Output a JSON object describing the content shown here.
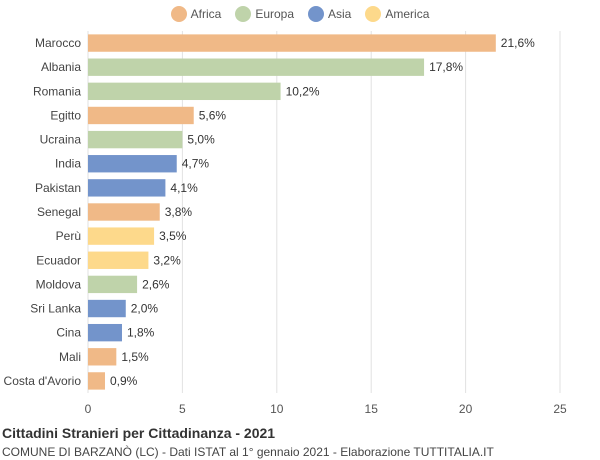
{
  "chart_data": {
    "type": "bar",
    "orientation": "horizontal",
    "title": "Cittadini Stranieri per Cittadinanza - 2021",
    "subtitle": "COMUNE DI BARZANÒ (LC) - Dati ISTAT al 1° gennaio 2021 - Elaborazione TUTTITALIA.IT",
    "xlim": [
      0,
      25
    ],
    "xticks": [
      0,
      5,
      10,
      15,
      20,
      25
    ],
    "grid": true,
    "legend_position": "top",
    "legend": [
      {
        "name": "Africa",
        "color": "#f0b987"
      },
      {
        "name": "Europa",
        "color": "#bfd3aa"
      },
      {
        "name": "Asia",
        "color": "#7394cb"
      },
      {
        "name": "America",
        "color": "#fdd98b"
      }
    ],
    "categories": [
      "Marocco",
      "Albania",
      "Romania",
      "Egitto",
      "Ucraina",
      "India",
      "Pakistan",
      "Senegal",
      "Perù",
      "Ecuador",
      "Moldova",
      "Sri Lanka",
      "Cina",
      "Mali",
      "Costa d'Avorio"
    ],
    "values": [
      21.6,
      17.8,
      10.2,
      5.6,
      5.0,
      4.7,
      4.1,
      3.8,
      3.5,
      3.2,
      2.6,
      2.0,
      1.8,
      1.5,
      0.9
    ],
    "value_labels": [
      "21,6%",
      "17,8%",
      "10,2%",
      "5,6%",
      "5,0%",
      "4,7%",
      "4,1%",
      "3,8%",
      "3,5%",
      "3,2%",
      "2,6%",
      "2,0%",
      "1,8%",
      "1,5%",
      "0,9%"
    ],
    "groups": [
      "Africa",
      "Europa",
      "Europa",
      "Africa",
      "Europa",
      "Asia",
      "Asia",
      "Africa",
      "America",
      "America",
      "Europa",
      "Asia",
      "Asia",
      "Africa",
      "Africa"
    ]
  }
}
